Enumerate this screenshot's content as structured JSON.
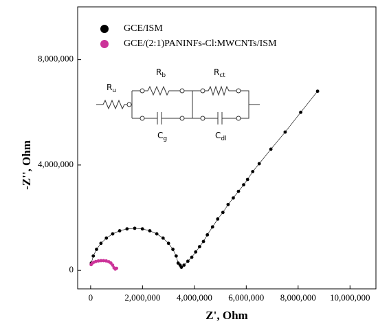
{
  "chart_data": {
    "type": "scatter",
    "xlabel": "Z', Ohm",
    "ylabel": "-Z'', Ohm",
    "xlim": [
      -500000,
      11000000
    ],
    "ylim": [
      -700000,
      10000000
    ],
    "xticks": [
      0,
      {
        "value": 2000000,
        "label": "2,000,000"
      },
      {
        "value": 4000000,
        "label": "4,000,000"
      },
      {
        "value": 6000000,
        "label": "6,000,000"
      },
      {
        "value": 8000000,
        "label": "8,000,000"
      },
      {
        "value": 10000000,
        "label": "10,000,000"
      }
    ],
    "yticks": [
      0,
      {
        "value": 4000000,
        "label": "4,000,000"
      },
      {
        "value": 8000000,
        "label": "8,000,000"
      }
    ],
    "legend": "upper left",
    "series": [
      {
        "name": "GCE/ISM",
        "color": "#000000",
        "line": true,
        "x": [
          26000,
          102000,
          228000,
          398000,
          607000,
          850000,
          1119000,
          1404000,
          1700000,
          1996000,
          2281000,
          2550000,
          2793000,
          3002000,
          3172000,
          3298000,
          3374000,
          3450000,
          3500000,
          3600000,
          3750000,
          3900000,
          4050000,
          4200000,
          4350000,
          4500000,
          4700000,
          4900000,
          5100000,
          5300000,
          5500000,
          5700000,
          5900000,
          6050000,
          6250000,
          6500000,
          6950000,
          7500000,
          8100000,
          8750000
        ],
        "values": [
          278000,
          547000,
          800000,
          1028000,
          1226000,
          1386000,
          1503000,
          1576000,
          1600000,
          1576000,
          1503000,
          1386000,
          1226000,
          1028000,
          800000,
          547000,
          278000,
          200000,
          120000,
          200000,
          350000,
          500000,
          700000,
          900000,
          1100000,
          1350000,
          1650000,
          1950000,
          2200000,
          2500000,
          2750000,
          3000000,
          3250000,
          3450000,
          3750000,
          4050000,
          4600000,
          5250000,
          6000000,
          6800000
        ]
      },
      {
        "name": "GCE/(2:1)PANINFs-Cl:MWCNTs/ISM",
        "color": "#cc3399",
        "line": true,
        "x": [
          20000,
          60000,
          120000,
          200000,
          300000,
          400000,
          500000,
          600000,
          700000,
          780000,
          850000,
          900000,
          950000,
          1000000
        ],
        "values": [
          220000,
          270000,
          310000,
          340000,
          360000,
          370000,
          370000,
          360000,
          330000,
          280000,
          200000,
          100000,
          50000,
          80000
        ]
      }
    ],
    "circuit": [
      {
        "symbol": "R",
        "subscript": "u"
      },
      {
        "symbol": "R",
        "subscript": "b"
      },
      {
        "symbol": "R",
        "subscript": "ct"
      },
      {
        "symbol": "C",
        "subscript": "g"
      },
      {
        "symbol": "C",
        "subscript": "dl"
      }
    ]
  }
}
